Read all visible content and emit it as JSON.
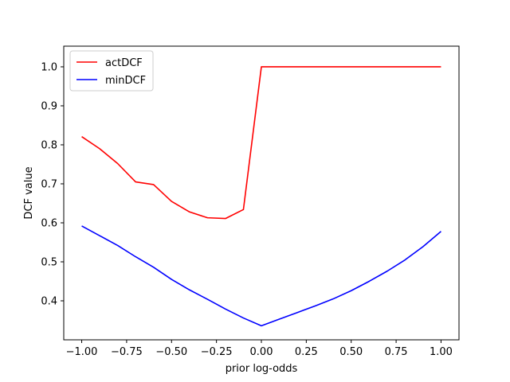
{
  "chart_data": {
    "type": "line",
    "title": "",
    "xlabel": "prior log-odds",
    "ylabel": "DCF value",
    "xlim": [
      -1.1,
      1.1
    ],
    "ylim": [
      0.3,
      1.053
    ],
    "x_ticks": [
      -1.0,
      -0.75,
      -0.5,
      -0.25,
      0.0,
      0.25,
      0.5,
      0.75,
      1.0
    ],
    "x_tick_labels": [
      "−1.00",
      "−0.75",
      "−0.50",
      "−0.25",
      "0.00",
      "0.25",
      "0.50",
      "0.75",
      "1.00"
    ],
    "y_ticks": [
      0.4,
      0.5,
      0.6,
      0.7,
      0.8,
      0.9,
      1.0
    ],
    "y_tick_labels": [
      "0.4",
      "0.5",
      "0.6",
      "0.7",
      "0.8",
      "0.9",
      "1.0"
    ],
    "grid": false,
    "legend_position": "top-left",
    "series": [
      {
        "name": "actDCF",
        "color": "#ff0000",
        "x": [
          -1.0,
          -0.9,
          -0.8,
          -0.7,
          -0.6,
          -0.5,
          -0.4,
          -0.3,
          -0.2,
          -0.1,
          0.0,
          0.1,
          0.2,
          0.3,
          0.4,
          0.5,
          0.6,
          0.7,
          0.8,
          0.9,
          1.0
        ],
        "y": [
          0.821,
          0.79,
          0.752,
          0.705,
          0.698,
          0.655,
          0.628,
          0.613,
          0.611,
          0.634,
          1.0,
          1.0,
          1.0,
          1.0,
          1.0,
          1.0,
          1.0,
          1.0,
          1.0,
          1.0,
          1.0
        ]
      },
      {
        "name": "minDCF",
        "color": "#0000ff",
        "x": [
          -1.0,
          -0.9,
          -0.8,
          -0.7,
          -0.6,
          -0.5,
          -0.4,
          -0.3,
          -0.2,
          -0.1,
          0.0,
          0.1,
          0.2,
          0.3,
          0.4,
          0.5,
          0.6,
          0.7,
          0.8,
          0.9,
          1.0
        ],
        "y": [
          0.592,
          0.567,
          0.542,
          0.513,
          0.486,
          0.455,
          0.428,
          0.404,
          0.379,
          0.356,
          0.336,
          0.353,
          0.37,
          0.387,
          0.405,
          0.426,
          0.45,
          0.476,
          0.505,
          0.539,
          0.578
        ]
      }
    ]
  }
}
